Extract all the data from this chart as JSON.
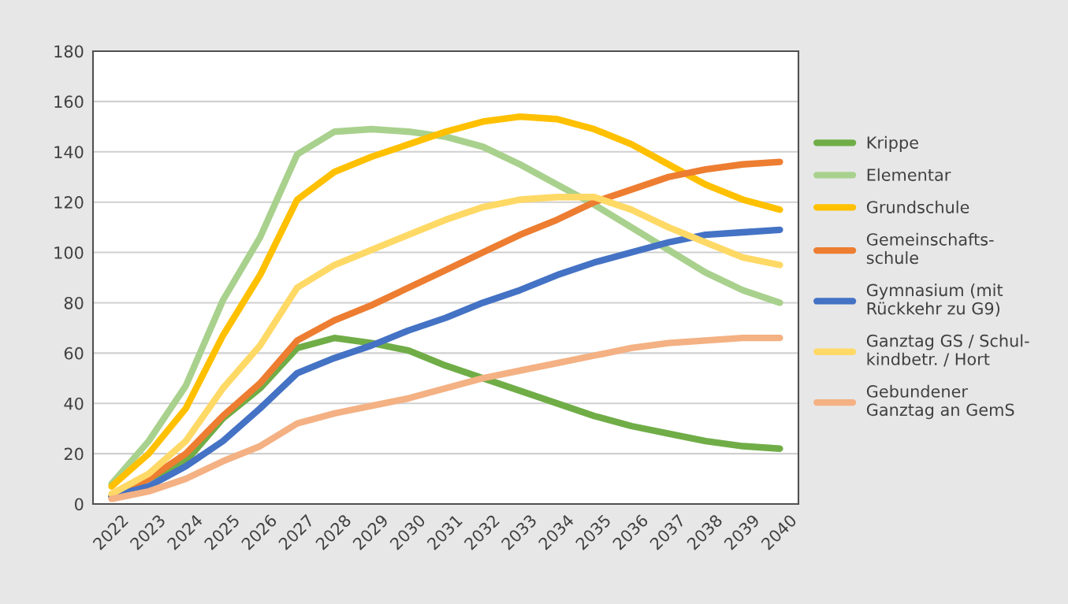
{
  "chart_data": {
    "type": "line",
    "categories": [
      "2022",
      "2023",
      "2024",
      "2025",
      "2026",
      "2027",
      "2028",
      "2029",
      "2030",
      "2031",
      "2032",
      "2033",
      "2034",
      "2035",
      "2036",
      "2037",
      "2038",
      "2039",
      "2040"
    ],
    "series": [
      {
        "name": "Krippe",
        "color": "#70ad47",
        "values": [
          3,
          10,
          17,
          34,
          46,
          62,
          66,
          64,
          61,
          55,
          50,
          45,
          40,
          35,
          31,
          28,
          25,
          23,
          22
        ]
      },
      {
        "name": "Elementar",
        "color": "#a9d18e",
        "values": [
          8,
          25,
          47,
          81,
          106,
          139,
          148,
          149,
          148,
          146,
          142,
          135,
          127,
          119,
          110,
          101,
          92,
          85,
          80
        ]
      },
      {
        "name": "Grundschule",
        "color": "#ffc000",
        "values": [
          7,
          20,
          38,
          67,
          91,
          121,
          132,
          138,
          143,
          148,
          152,
          154,
          153,
          149,
          143,
          135,
          127,
          121,
          117
        ]
      },
      {
        "name": "Gemeinschafts-\nschule",
        "color": "#ed7d31",
        "values": [
          3,
          10,
          20,
          35,
          48,
          65,
          73,
          79,
          86,
          93,
          100,
          107,
          113,
          120,
          125,
          130,
          133,
          135,
          136
        ]
      },
      {
        "name": "Gymnasium (mit\nRückkehr zu G9)",
        "color": "#4472c4",
        "values": [
          3,
          7,
          15,
          25,
          38,
          52,
          58,
          63,
          69,
          74,
          80,
          85,
          91,
          96,
          100,
          104,
          107,
          108,
          109
        ]
      },
      {
        "name": "Ganztag GS / Schul-\nkindbetr. / Hort",
        "color": "#ffd966",
        "values": [
          4,
          12,
          25,
          46,
          63,
          86,
          95,
          101,
          107,
          113,
          118,
          121,
          122,
          122,
          117,
          110,
          104,
          98,
          95
        ]
      },
      {
        "name": "Gebundener\nGanztag an GemS",
        "color": "#f4b183",
        "values": [
          2,
          5,
          10,
          17,
          23,
          32,
          36,
          39,
          42,
          46,
          50,
          53,
          56,
          59,
          62,
          64,
          65,
          66,
          66
        ]
      }
    ],
    "ylim": [
      0,
      180
    ],
    "yticks": [
      0,
      20,
      40,
      60,
      80,
      100,
      120,
      140,
      160,
      180
    ],
    "grid": "y",
    "legend": "right",
    "marker": "none",
    "line_style": "solid"
  }
}
